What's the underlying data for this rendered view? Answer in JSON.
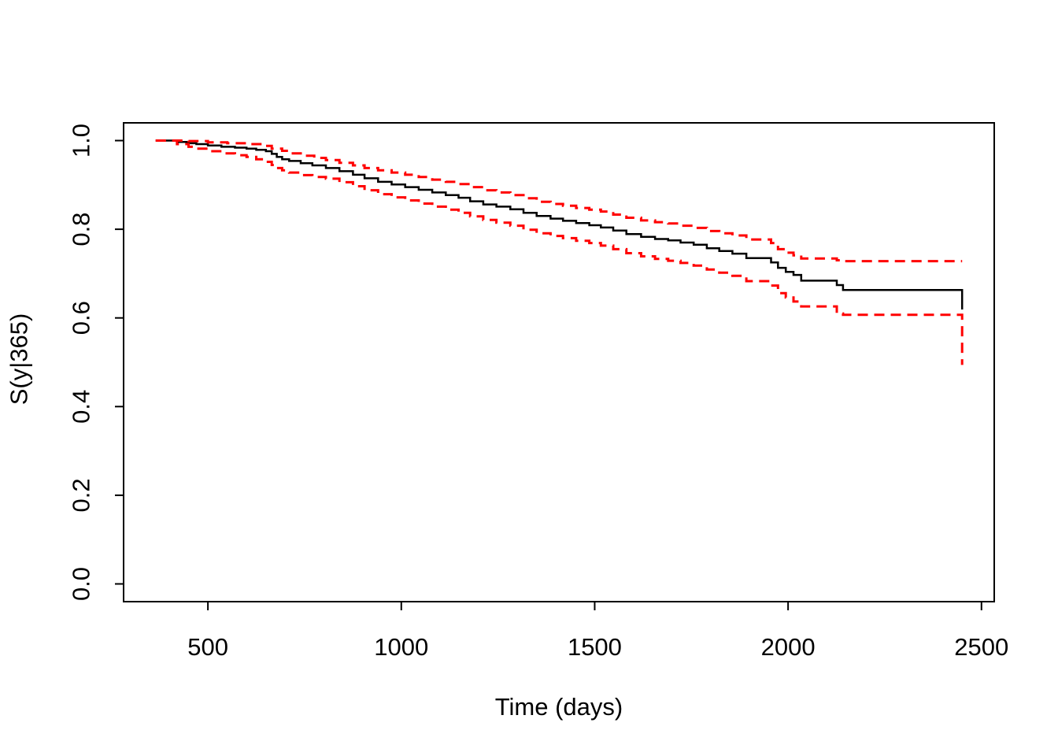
{
  "figure": {
    "background": "#ffffff",
    "curve_color": "#000000",
    "ci_color": "#FF0000"
  },
  "chart_data": {
    "type": "line",
    "subtype": "kaplan-meier-step-survival",
    "title": "",
    "xlabel": "Time (days)",
    "ylabel": "S(y|365)",
    "grid": false,
    "legend": false,
    "xlim": [
      282,
      2533
    ],
    "ylim": [
      -0.04,
      1.04
    ],
    "x_ticks": [
      500,
      1000,
      1500,
      2000,
      2500
    ],
    "x_tick_labels": [
      "500",
      "1000",
      "1500",
      "2000",
      "2500"
    ],
    "y_ticks": [
      0.0,
      0.2,
      0.4,
      0.6,
      0.8,
      1.0
    ],
    "y_tick_labels": [
      "0.0",
      "0.2",
      "0.4",
      "0.6",
      "0.8",
      "1.0"
    ],
    "series": [
      {
        "name": "survival-estimate",
        "style": "solid",
        "color": "#000000",
        "step": true,
        "points": [
          [
            365,
            1.0
          ],
          [
            420,
            0.997
          ],
          [
            450,
            0.994
          ],
          [
            470,
            0.992
          ],
          [
            500,
            0.989
          ],
          [
            535,
            0.986
          ],
          [
            570,
            0.984
          ],
          [
            600,
            0.982
          ],
          [
            625,
            0.979
          ],
          [
            650,
            0.976
          ],
          [
            665,
            0.97
          ],
          [
            678,
            0.963
          ],
          [
            692,
            0.958
          ],
          [
            710,
            0.954
          ],
          [
            740,
            0.949
          ],
          [
            770,
            0.944
          ],
          [
            805,
            0.938
          ],
          [
            840,
            0.931
          ],
          [
            875,
            0.923
          ],
          [
            905,
            0.915
          ],
          [
            940,
            0.907
          ],
          [
            975,
            0.901
          ],
          [
            1010,
            0.895
          ],
          [
            1045,
            0.889
          ],
          [
            1080,
            0.883
          ],
          [
            1115,
            0.877
          ],
          [
            1148,
            0.871
          ],
          [
            1178,
            0.863
          ],
          [
            1212,
            0.856
          ],
          [
            1246,
            0.851
          ],
          [
            1282,
            0.845
          ],
          [
            1316,
            0.837
          ],
          [
            1350,
            0.83
          ],
          [
            1386,
            0.824
          ],
          [
            1418,
            0.819
          ],
          [
            1452,
            0.814
          ],
          [
            1486,
            0.809
          ],
          [
            1516,
            0.804
          ],
          [
            1548,
            0.797
          ],
          [
            1582,
            0.789
          ],
          [
            1620,
            0.783
          ],
          [
            1656,
            0.778
          ],
          [
            1690,
            0.775
          ],
          [
            1722,
            0.77
          ],
          [
            1756,
            0.765
          ],
          [
            1790,
            0.757
          ],
          [
            1822,
            0.751
          ],
          [
            1856,
            0.745
          ],
          [
            1892,
            0.735
          ],
          [
            1956,
            0.725
          ],
          [
            1974,
            0.713
          ],
          [
            1994,
            0.704
          ],
          [
            2014,
            0.697
          ],
          [
            2034,
            0.684
          ],
          [
            2126,
            0.674
          ],
          [
            2142,
            0.663
          ],
          [
            2450,
            0.619
          ]
        ]
      },
      {
        "name": "upper-confidence-band",
        "style": "dashed",
        "color": "#FF0000",
        "step": true,
        "points": [
          [
            365,
            1.0
          ],
          [
            450,
            0.999
          ],
          [
            500,
            0.996
          ],
          [
            550,
            0.994
          ],
          [
            600,
            0.992
          ],
          [
            640,
            0.988
          ],
          [
            665,
            0.982
          ],
          [
            692,
            0.977
          ],
          [
            715,
            0.971
          ],
          [
            740,
            0.966
          ],
          [
            775,
            0.961
          ],
          [
            805,
            0.956
          ],
          [
            840,
            0.95
          ],
          [
            875,
            0.944
          ],
          [
            905,
            0.938
          ],
          [
            940,
            0.933
          ],
          [
            975,
            0.928
          ],
          [
            1010,
            0.923
          ],
          [
            1045,
            0.918
          ],
          [
            1080,
            0.912
          ],
          [
            1115,
            0.907
          ],
          [
            1148,
            0.902
          ],
          [
            1178,
            0.895
          ],
          [
            1212,
            0.888
          ],
          [
            1246,
            0.883
          ],
          [
            1282,
            0.877
          ],
          [
            1316,
            0.87
          ],
          [
            1350,
            0.862
          ],
          [
            1386,
            0.857
          ],
          [
            1418,
            0.853
          ],
          [
            1452,
            0.848
          ],
          [
            1486,
            0.844
          ],
          [
            1516,
            0.84
          ],
          [
            1548,
            0.833
          ],
          [
            1582,
            0.826
          ],
          [
            1620,
            0.82
          ],
          [
            1656,
            0.816
          ],
          [
            1690,
            0.813
          ],
          [
            1722,
            0.808
          ],
          [
            1756,
            0.803
          ],
          [
            1790,
            0.796
          ],
          [
            1822,
            0.791
          ],
          [
            1856,
            0.786
          ],
          [
            1892,
            0.777
          ],
          [
            1956,
            0.769
          ],
          [
            1974,
            0.755
          ],
          [
            1994,
            0.747
          ],
          [
            2014,
            0.741
          ],
          [
            2034,
            0.734
          ],
          [
            2126,
            0.73
          ],
          [
            2142,
            0.728
          ],
          [
            2450,
            0.728
          ]
        ]
      },
      {
        "name": "lower-confidence-band",
        "style": "dashed",
        "color": "#FF0000",
        "step": true,
        "points": [
          [
            365,
            1.0
          ],
          [
            420,
            0.992
          ],
          [
            450,
            0.986
          ],
          [
            470,
            0.982
          ],
          [
            500,
            0.976
          ],
          [
            535,
            0.971
          ],
          [
            570,
            0.967
          ],
          [
            600,
            0.963
          ],
          [
            625,
            0.958
          ],
          [
            650,
            0.952
          ],
          [
            665,
            0.945
          ],
          [
            678,
            0.938
          ],
          [
            692,
            0.933
          ],
          [
            710,
            0.928
          ],
          [
            740,
            0.922
          ],
          [
            770,
            0.918
          ],
          [
            805,
            0.914
          ],
          [
            840,
            0.906
          ],
          [
            875,
            0.897
          ],
          [
            905,
            0.888
          ],
          [
            940,
            0.879
          ],
          [
            975,
            0.872
          ],
          [
            1010,
            0.865
          ],
          [
            1045,
            0.858
          ],
          [
            1080,
            0.851
          ],
          [
            1115,
            0.844
          ],
          [
            1148,
            0.837
          ],
          [
            1178,
            0.829
          ],
          [
            1212,
            0.821
          ],
          [
            1246,
            0.815
          ],
          [
            1282,
            0.808
          ],
          [
            1316,
            0.799
          ],
          [
            1350,
            0.791
          ],
          [
            1386,
            0.785
          ],
          [
            1418,
            0.78
          ],
          [
            1452,
            0.774
          ],
          [
            1486,
            0.769
          ],
          [
            1516,
            0.763
          ],
          [
            1548,
            0.755
          ],
          [
            1582,
            0.746
          ],
          [
            1620,
            0.739
          ],
          [
            1656,
            0.733
          ],
          [
            1690,
            0.729
          ],
          [
            1722,
            0.724
          ],
          [
            1756,
            0.718
          ],
          [
            1790,
            0.709
          ],
          [
            1822,
            0.702
          ],
          [
            1856,
            0.695
          ],
          [
            1892,
            0.683
          ],
          [
            1956,
            0.673
          ],
          [
            1974,
            0.656
          ],
          [
            1994,
            0.646
          ],
          [
            2014,
            0.637
          ],
          [
            2034,
            0.626
          ],
          [
            2126,
            0.61
          ],
          [
            2142,
            0.607
          ],
          [
            2450,
            0.494
          ]
        ]
      }
    ]
  }
}
